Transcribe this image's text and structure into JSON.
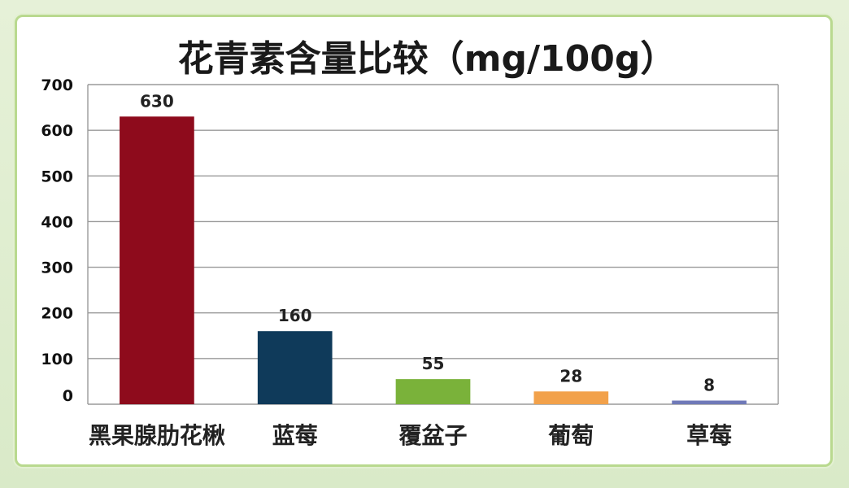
{
  "chart_data": {
    "type": "bar",
    "title": "花青素含量比较（mg/100g）",
    "categories": [
      "黑果腺肋花楸",
      "蓝莓",
      "覆盆子",
      "葡萄",
      "草莓"
    ],
    "values": [
      630,
      160,
      55,
      28,
      8
    ],
    "value_labels": [
      "630",
      "160",
      "55",
      "28",
      "8"
    ],
    "bar_colors": [
      "#8e0b1c",
      "#0f3a5a",
      "#7ab23a",
      "#f2a14a",
      "#6f79b8"
    ],
    "category_label_colors": [
      "#c41a1a",
      "#222222",
      "#222222",
      "#222222",
      "#222222"
    ],
    "ylim": [
      0,
      700
    ],
    "yticks": [
      0,
      100,
      200,
      300,
      400,
      500,
      600,
      700
    ],
    "grid": true,
    "xlabel": "",
    "ylabel": ""
  }
}
